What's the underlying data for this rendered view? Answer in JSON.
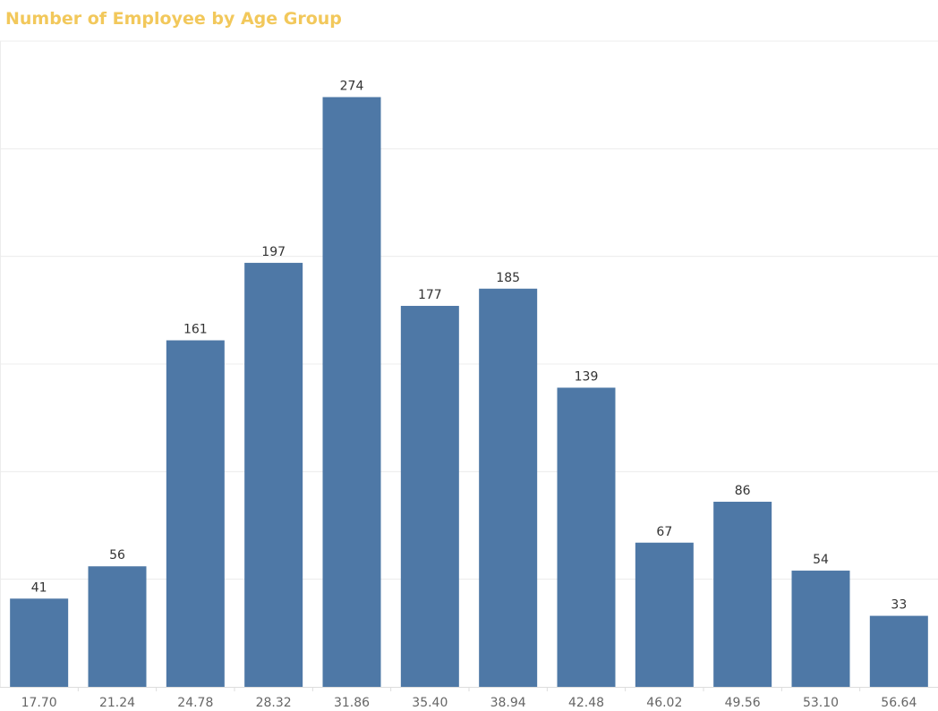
{
  "chart_data": {
    "type": "bar",
    "title": "Number of Employee by Age Group",
    "xlabel": "",
    "ylabel": "",
    "categories": [
      "17.70",
      "21.24",
      "24.78",
      "28.32",
      "31.86",
      "35.40",
      "38.94",
      "42.48",
      "46.02",
      "49.56",
      "53.10",
      "56.64"
    ],
    "values": [
      41,
      56,
      161,
      197,
      274,
      177,
      185,
      139,
      67,
      86,
      54,
      33
    ],
    "ylim": [
      0,
      300
    ],
    "grid": true,
    "legend": "none",
    "bar_color": "#4e78a6",
    "title_color": "#f2c85b"
  }
}
